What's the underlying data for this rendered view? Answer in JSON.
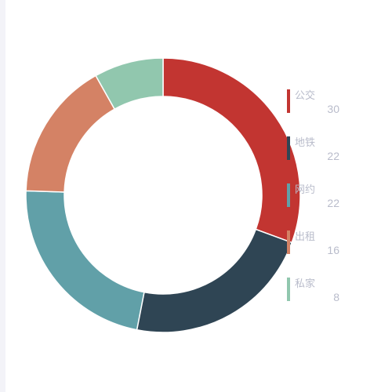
{
  "chart_data": {
    "type": "pie",
    "donut": true,
    "legend_position": "right",
    "categories": [
      "公交",
      "地铁",
      "网约",
      "出租",
      "私家"
    ],
    "values": [
      30,
      22,
      22,
      16,
      8
    ],
    "colors": [
      "#c23531",
      "#2f4554",
      "#61a0a8",
      "#d48265",
      "#91c7ae"
    ],
    "legend": [
      {
        "label": "公交",
        "value": "30"
      },
      {
        "label": "地铁",
        "value": "22"
      },
      {
        "label": "网约",
        "value": "22"
      },
      {
        "label": "出租",
        "value": "16"
      },
      {
        "label": "私家",
        "value": "8"
      }
    ]
  }
}
